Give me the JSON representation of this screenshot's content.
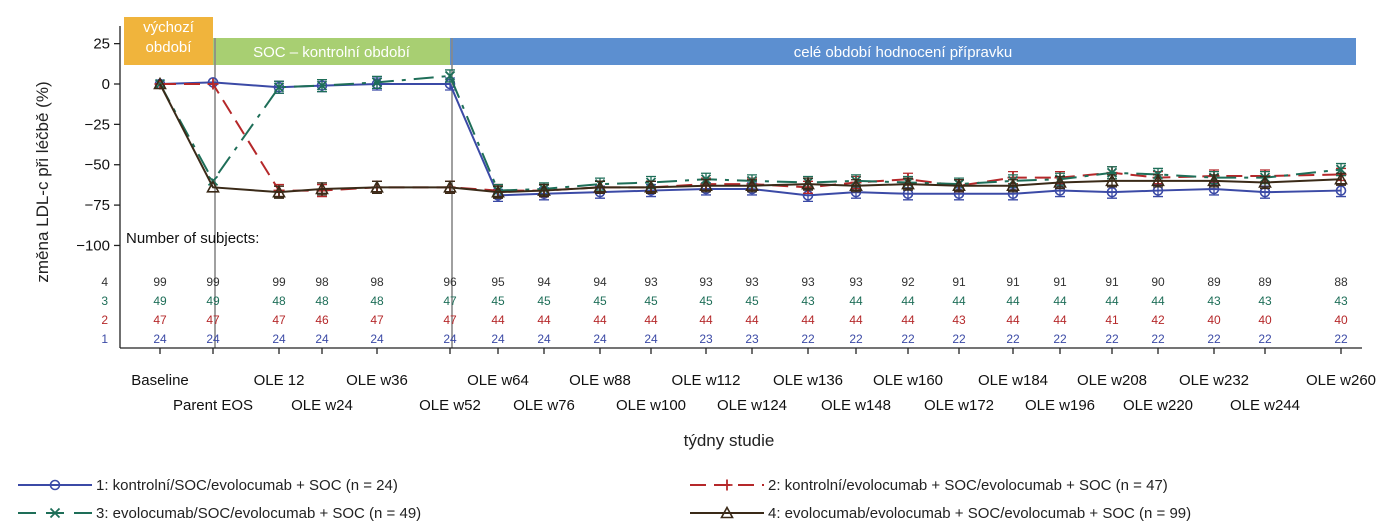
{
  "chart_data": {
    "type": "line",
    "ylabel": "změna LDL-c při léčbě (%)",
    "xlabel": "týdny studie",
    "ylim": [
      -110,
      30
    ],
    "yticks": [
      25,
      0,
      -25,
      -50,
      -75,
      -100
    ],
    "ytick_labels": [
      "25",
      "0",
      "−25",
      "−50",
      "−75",
      "−100"
    ],
    "categories": [
      "Baseline",
      "Parent EOS",
      "OLE 12",
      "OLE w24",
      "OLE w36",
      "OLE w52",
      "OLE w64",
      "OLE w76",
      "OLE w88",
      "OLE w100",
      "OLE w112",
      "OLE w124",
      "OLE w136",
      "OLE w148",
      "OLE w160",
      "OLE w172",
      "OLE w184",
      "OLE w196",
      "OLE w208",
      "OLE w220",
      "OLE w232",
      "OLE w244",
      "OLE w260"
    ],
    "periods": [
      {
        "label_lines": [
          "výchozí",
          "období"
        ],
        "from": 0,
        "to": 1,
        "color": "#f0b43c"
      },
      {
        "label_lines": [
          "SOC – kontrolní období"
        ],
        "from": 1,
        "to": 5,
        "color": "#a8cf72"
      },
      {
        "label_lines": [
          "celé období hodnocení přípravku"
        ],
        "from": 5,
        "to": 22.1,
        "color": "#5c8fd0"
      }
    ],
    "series": [
      {
        "name": "1: kontrolní/SOC/evolocumab + SOC (n = 24)",
        "short": "1",
        "color": "#3b4aa6",
        "marker": "circle",
        "dash": "",
        "values": [
          0,
          1,
          -2,
          -1,
          0,
          0,
          -69,
          -68,
          -67,
          -66,
          -65,
          -65,
          -69,
          -67,
          -68,
          -68,
          -68,
          -66,
          -67,
          -66,
          -65,
          -67,
          -66
        ]
      },
      {
        "name": "2: kontrolní/evolocumab + SOC/evolocumab + SOC (n = 47)",
        "short": "2",
        "color": "#b5282a",
        "marker": "plus",
        "dash": "16,8",
        "values": [
          0,
          0,
          -66,
          -66,
          -64,
          -64,
          -66,
          -66,
          -64,
          -64,
          -62,
          -62,
          -64,
          -61,
          -59,
          -63,
          -58,
          -58,
          -55,
          -58,
          -57,
          -57,
          -56
        ]
      },
      {
        "name": "3: evolocumab/SOC/evolocumab + SOC (n = 49)",
        "short": "3",
        "color": "#1e6e58",
        "marker": "x",
        "dash": "20,8,4,8",
        "values": [
          0,
          -60,
          -2,
          -1,
          1,
          5,
          -66,
          -65,
          -62,
          -61,
          -59,
          -60,
          -61,
          -60,
          -61,
          -62,
          -60,
          -59,
          -55,
          -56,
          -58,
          -58,
          -53
        ]
      },
      {
        "name": "4: evolocumab/evolocumab + SOC/evolocumab + SOC (n = 99)",
        "short": "4",
        "color": "#3a2a18",
        "marker": "triangle",
        "dash": "",
        "values": [
          0,
          -64,
          -67,
          -65,
          -64,
          -64,
          -67,
          -66,
          -64,
          -64,
          -63,
          -63,
          -62,
          -63,
          -62,
          -63,
          -63,
          -61,
          -60,
          -60,
          -60,
          -61,
          -59
        ]
      }
    ],
    "subjects_label": "Number of subjects:",
    "subjects": [
      {
        "group": "4",
        "color": "#333333",
        "counts": [
          "99",
          "99",
          "99",
          "98",
          "98",
          "96",
          "95",
          "94",
          "94",
          "93",
          "93",
          "93",
          "93",
          "93",
          "92",
          "91",
          "91",
          "91",
          "91",
          "90",
          "89",
          "89",
          "88"
        ]
      },
      {
        "group": "3",
        "color": "#1e6e58",
        "counts": [
          "49",
          "49",
          "48",
          "48",
          "48",
          "47",
          "45",
          "45",
          "45",
          "45",
          "45",
          "45",
          "43",
          "44",
          "44",
          "44",
          "44",
          "44",
          "44",
          "44",
          "43",
          "43",
          "43"
        ]
      },
      {
        "group": "2",
        "color": "#b5282a",
        "counts": [
          "47",
          "47",
          "47",
          "46",
          "47",
          "47",
          "44",
          "44",
          "44",
          "44",
          "44",
          "44",
          "44",
          "44",
          "44",
          "43",
          "44",
          "44",
          "41",
          "42",
          "40",
          "40",
          "40"
        ]
      },
      {
        "group": "1",
        "color": "#3b4aa6",
        "counts": [
          "24",
          "24",
          "24",
          "24",
          "24",
          "24",
          "24",
          "24",
          "24",
          "24",
          "23",
          "23",
          "22",
          "22",
          "22",
          "22",
          "22",
          "22",
          "22",
          "22",
          "22",
          "22",
          "22"
        ]
      }
    ],
    "legend_position": "bottom"
  }
}
